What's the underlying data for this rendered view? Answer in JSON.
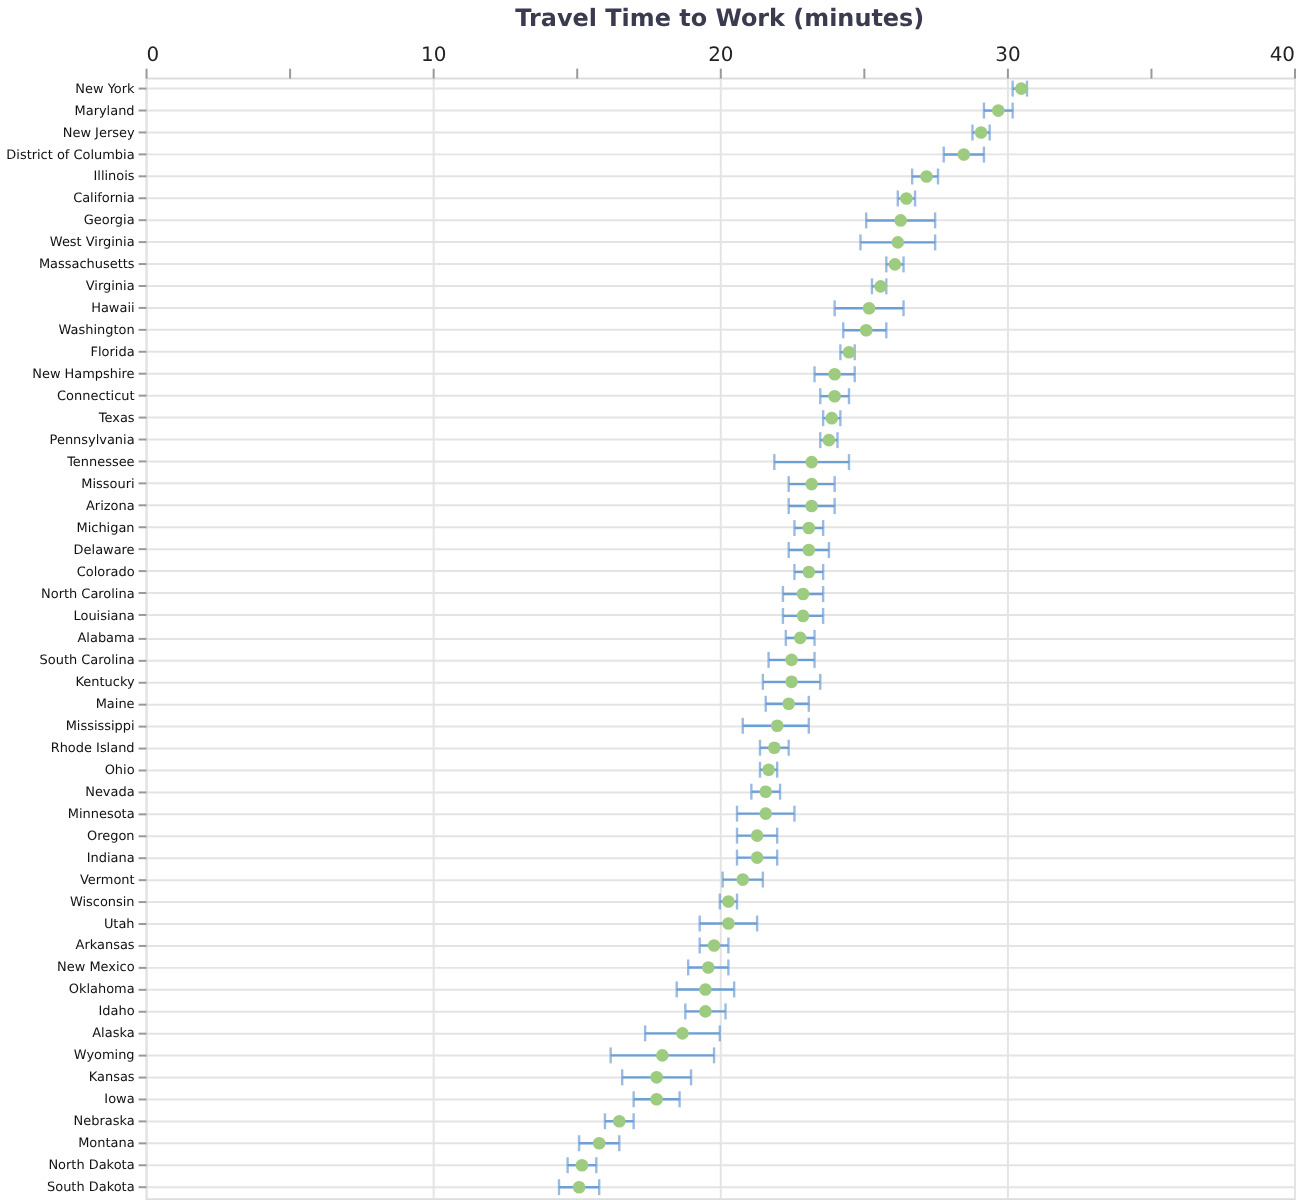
{
  "chart_data": {
    "type": "scatter",
    "orientation": "horizontal",
    "title": "Travel Time to Work (minutes)",
    "categories": [
      "New York",
      "Maryland",
      "New Jersey",
      "District of Columbia",
      "Illinois",
      "California",
      "Georgia",
      "West Virginia",
      "Massachusetts",
      "Virginia",
      "Hawaii",
      "Washington",
      "Florida",
      "New Hampshire",
      "Connecticut",
      "Texas",
      "Pennsylvania",
      "Tennessee",
      "Missouri",
      "Arizona",
      "Michigan",
      "Delaware",
      "Colorado",
      "North Carolina",
      "Louisiana",
      "Alabama",
      "South Carolina",
      "Kentucky",
      "Maine",
      "Mississippi",
      "Rhode Island",
      "Ohio",
      "Nevada",
      "Minnesota",
      "Oregon",
      "Indiana",
      "Vermont",
      "Wisconsin",
      "Utah",
      "Arkansas",
      "New Mexico",
      "Oklahoma",
      "Idaho",
      "Alaska",
      "Wyoming",
      "Kansas",
      "Iowa",
      "Nebraska",
      "Montana",
      "North Dakota",
      "South Dakota"
    ],
    "values": [
      30.5,
      29.7,
      29.1,
      28.5,
      27.2,
      26.5,
      26.3,
      26.2,
      26.1,
      25.6,
      25.2,
      25.1,
      24.5,
      24.0,
      24.0,
      23.9,
      23.8,
      23.2,
      23.2,
      23.2,
      23.1,
      23.1,
      23.1,
      22.9,
      22.9,
      22.8,
      22.5,
      22.5,
      22.4,
      22.0,
      21.9,
      21.7,
      21.6,
      21.6,
      21.3,
      21.3,
      20.8,
      20.3,
      20.3,
      19.8,
      19.6,
      19.5,
      19.5,
      18.7,
      18.0,
      17.8,
      17.8,
      16.5,
      15.8,
      15.2,
      15.1
    ],
    "errors": [
      [
        30.2,
        30.7
      ],
      [
        29.2,
        30.2
      ],
      [
        28.8,
        29.4
      ],
      [
        27.8,
        29.2
      ],
      [
        26.7,
        27.6
      ],
      [
        26.2,
        26.8
      ],
      [
        25.1,
        27.5
      ],
      [
        24.9,
        27.5
      ],
      [
        25.8,
        26.4
      ],
      [
        25.3,
        25.8
      ],
      [
        24.0,
        26.4
      ],
      [
        24.3,
        25.8
      ],
      [
        24.2,
        24.7
      ],
      [
        23.3,
        24.7
      ],
      [
        23.5,
        24.5
      ],
      [
        23.6,
        24.2
      ],
      [
        23.5,
        24.1
      ],
      [
        21.9,
        24.5
      ],
      [
        22.4,
        24.0
      ],
      [
        22.4,
        24.0
      ],
      [
        22.6,
        23.6
      ],
      [
        22.4,
        23.8
      ],
      [
        22.6,
        23.6
      ],
      [
        22.2,
        23.6
      ],
      [
        22.2,
        23.6
      ],
      [
        22.3,
        23.3
      ],
      [
        21.7,
        23.3
      ],
      [
        21.5,
        23.5
      ],
      [
        21.6,
        23.1
      ],
      [
        20.8,
        23.1
      ],
      [
        21.4,
        22.4
      ],
      [
        21.4,
        22.0
      ],
      [
        21.1,
        22.1
      ],
      [
        20.6,
        22.6
      ],
      [
        20.6,
        22.0
      ],
      [
        20.6,
        22.0
      ],
      [
        20.1,
        21.5
      ],
      [
        20.0,
        20.6
      ],
      [
        19.3,
        21.3
      ],
      [
        19.3,
        20.3
      ],
      [
        18.9,
        20.3
      ],
      [
        18.5,
        20.5
      ],
      [
        18.8,
        20.2
      ],
      [
        17.4,
        20.0
      ],
      [
        16.2,
        19.8
      ],
      [
        16.6,
        19.0
      ],
      [
        17.0,
        18.6
      ],
      [
        16.0,
        17.0
      ],
      [
        15.1,
        16.5
      ],
      [
        14.7,
        15.7
      ],
      [
        14.4,
        15.8
      ]
    ],
    "color": "#9dcb80",
    "marker": "circle",
    "xlim": [
      0,
      40
    ],
    "xticks": [
      0,
      {
        "value": 5,
        "label": null
      },
      10,
      {
        "value": 15,
        "label": null
      },
      20,
      {
        "value": 25,
        "label": null
      },
      30,
      {
        "value": 35,
        "label": null
      },
      40
    ],
    "grid": true
  }
}
